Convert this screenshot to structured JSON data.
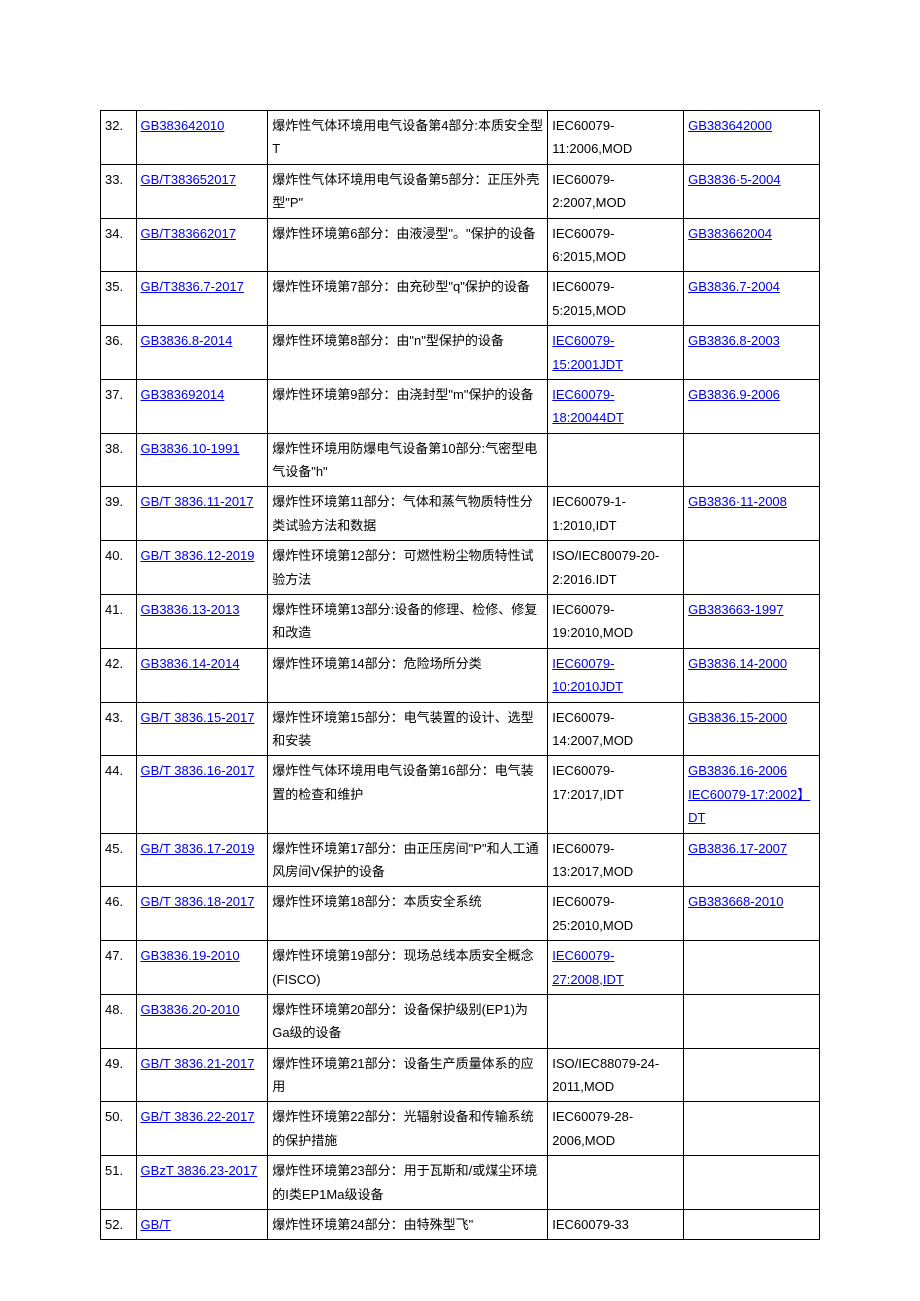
{
  "table": {
    "rows": [
      {
        "num": "32.",
        "std": "GB383642010",
        "std_link": true,
        "desc": "爆炸性气体环境用电气设备第4部分:本质安全型T",
        "ref": "IEC60079-11:2006,MOD",
        "ref_link": false,
        "repl": "GB383642000",
        "repl_link": true
      },
      {
        "num": "33.",
        "std": "GB/T383652017",
        "std_link": true,
        "desc": "爆炸性气体环境用电气设备第5部分：正压外壳型\"P\"",
        "ref": "IEC60079-2:2007,MOD",
        "ref_link": false,
        "repl": "GB3836·5-2004",
        "repl_link": true
      },
      {
        "num": "34.",
        "std": "GB/T383662017",
        "std_link": true,
        "desc": "爆炸性环境第6部分：由液浸型\"。\"保护的设备",
        "ref": "IEC60079-6:2015,MOD",
        "ref_link": false,
        "repl": "GB383662004",
        "repl_link": true
      },
      {
        "num": "35.",
        "std": "GB/T3836.7-2017",
        "std_link": true,
        "desc": "爆炸性环境第7部分：由充砂型\"q\"保护的设备",
        "ref": "IEC60079-5:2015,MOD",
        "ref_link": false,
        "repl": "GB3836.7-2004",
        "repl_link": true
      },
      {
        "num": "36.",
        "std": "GB3836.8-2014",
        "std_link": true,
        "desc": "爆炸性环境第8部分：由\"n\"型保护的设备",
        "ref": "IEC60079-15:2001JDT",
        "ref_link": true,
        "repl": "GB3836.8-2003",
        "repl_link": true
      },
      {
        "num": "37.",
        "std": "GB383692014",
        "std_link": true,
        "desc": "爆炸性环境第9部分：由浇封型\"m\"保护的设备",
        "ref": "IEC60079-18:20044DT",
        "ref_link": true,
        "repl": "GB3836.9-2006",
        "repl_link": true
      },
      {
        "num": "38.",
        "std": "GB3836.10-1991",
        "std_link": true,
        "desc": "爆炸性环境用防爆电气设备第10部分:气密型电气设备\"h\"",
        "ref": "",
        "ref_link": false,
        "repl": "",
        "repl_link": false
      },
      {
        "num": "39.",
        "std": "GB/T 3836.11-2017",
        "std_link": true,
        "desc": "爆炸性环境第11部分：气体和蒸气物质特性分类试验方法和数据",
        "ref": "IEC60079-1-1:2010,IDT",
        "ref_link": false,
        "repl": "GB3836·11-2008",
        "repl_link": true
      },
      {
        "num": "40.",
        "std": "GB/T 3836.12-2019",
        "std_link": true,
        "desc": "爆炸性环境第12部分：可燃性粉尘物质特性试验方法",
        "ref": "ISO/IEC80079-20-2:2016.IDT",
        "ref_link": false,
        "repl": "",
        "repl_link": false
      },
      {
        "num": "41.",
        "std": "GB3836.13-2013",
        "std_link": true,
        "desc": "爆炸性环境第13部分:设备的修理、检修、修复和改造",
        "ref": "IEC60079-19:2010,MOD",
        "ref_link": false,
        "repl": "GB383663-1997",
        "repl_link": true
      },
      {
        "num": "42.",
        "std": "GB3836.14-2014",
        "std_link": true,
        "desc": "爆炸性环境第14部分：危险场所分类",
        "ref": "IEC60079-10:2010JDT",
        "ref_link": true,
        "repl": "GB3836.14-2000",
        "repl_link": true
      },
      {
        "num": "43.",
        "std": "GB/T 3836.15-2017",
        "std_link": true,
        "desc": "爆炸性环境第15部分：电气装置的设计、选型和安装",
        "ref": "IEC60079-14:2007,MOD",
        "ref_link": false,
        "repl": "GB3836.15-2000",
        "repl_link": true
      },
      {
        "num": "44.",
        "std": "GB/T 3836.16-2017",
        "std_link": true,
        "desc": "爆炸性气体环境用电气设备第16部分：电气装置的检查和维护",
        "ref": "IEC60079-17:2017,IDT",
        "ref_link": false,
        "repl": "GB3836.16-2006 IEC60079-17:2002】DT",
        "repl_link": true
      },
      {
        "num": "45.",
        "std": "GB/T 3836.17-2019",
        "std_link": true,
        "desc": "爆炸性环境第17部分：由正压房间\"P\"和人工通风房间V保护的设备",
        "ref": "IEC60079-13:2017,MOD",
        "ref_link": false,
        "repl": "GB3836.17-2007",
        "repl_link": true
      },
      {
        "num": "46.",
        "std": "GB/T 3836.18-2017",
        "std_link": true,
        "desc": "爆炸性环境第18部分：本质安全系统",
        "ref": "IEC60079-25:2010,MOD",
        "ref_link": false,
        "repl": "GB383668-2010",
        "repl_link": true
      },
      {
        "num": "47.",
        "std": "GB3836.19-2010",
        "std_link": true,
        "desc": "爆炸性环境第19部分：现场总线本质安全概念(FISCO)",
        "ref": "IEC60079-27:2008,IDT",
        "ref_link": true,
        "repl": "",
        "repl_link": false
      },
      {
        "num": "48.",
        "std": "GB3836.20-2010",
        "std_link": true,
        "desc": "爆炸性环境第20部分：设备保护级别(EP1)为Ga级的设备",
        "ref": "",
        "ref_link": false,
        "repl": "",
        "repl_link": false
      },
      {
        "num": "49.",
        "std": "GB/T 3836.21-2017",
        "std_link": true,
        "desc": "爆炸性环境第21部分：设备生产质量体系的应用",
        "ref": "ISO/IEC88079-24-2011,MOD",
        "ref_link": false,
        "repl": "",
        "repl_link": false
      },
      {
        "num": "50.",
        "std": "GB/T 3836.22-2017",
        "std_link": true,
        "desc": "爆炸性环境第22部分：光辐射设备和传输系统的保护措施",
        "ref": "IEC60079-28-2006,MOD",
        "ref_link": false,
        "repl": "",
        "repl_link": false
      },
      {
        "num": "51.",
        "std": "GBzT 3836.23-2017",
        "std_link": true,
        "desc": "爆炸性环境第23部分：用于瓦斯和/或煤尘环境的I类EP1Ma级设备",
        "ref": "",
        "ref_link": false,
        "repl": "",
        "repl_link": false
      },
      {
        "num": "52.",
        "std": "GB/T",
        "std_link": true,
        "desc": "爆炸性环境第24部分：由特殊型飞\"",
        "ref": "IEC60079-33",
        "ref_link": false,
        "repl": "",
        "repl_link": false
      }
    ]
  }
}
